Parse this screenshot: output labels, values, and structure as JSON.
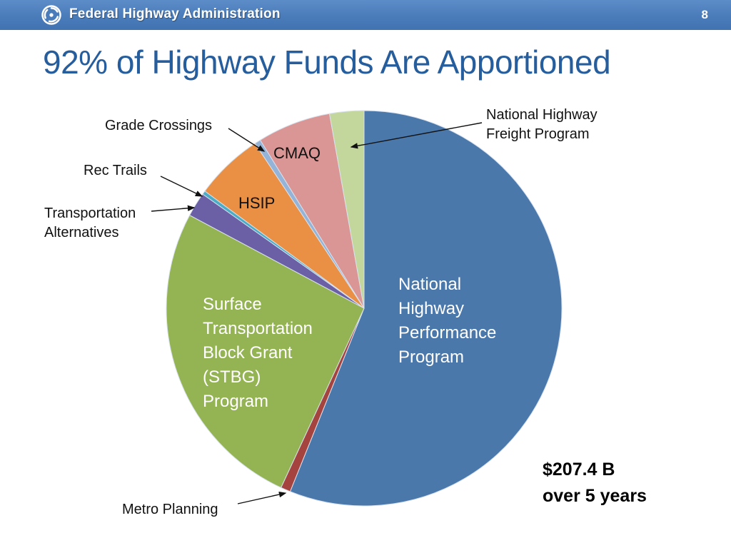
{
  "header": {
    "brand": "Federal Highway Administration",
    "page_number": "8",
    "logo_icon": "usdot-triskelion-logo",
    "bar_color": "#4a7cba"
  },
  "title": "92% of Highway Funds Are Apportioned",
  "annotation": {
    "total_line1": "$207.4 B",
    "total_line2": "over 5 years",
    "total_combined": "$207.4 B over 5 years"
  },
  "labels": {
    "nhpp_inside": "National\nHighway\nPerformance\nProgram",
    "stbg_inside": "Surface\nTransportation\nBlock Grant\n(STBG)\nProgram",
    "hsip": "HSIP",
    "cmaq": "CMAQ",
    "grade_crossings": "Grade Crossings",
    "rec_trails": "Rec Trails",
    "transportation_alternatives": "Transportation\nAlternatives",
    "freight": "National Highway\nFreight Program",
    "metro_planning": "Metro Planning"
  },
  "chart_data": {
    "type": "pie",
    "title": "92% of Highway Funds Are Apportioned",
    "annotation": "$207.4 B over 5 years",
    "rotation": "clockwise starting at 12 o'clock",
    "legend": "none (direct labels and leader-line callouts)",
    "slices": [
      {
        "label": "National Highway Performance Program",
        "share_pct": 56.1,
        "color": "#4a78ab"
      },
      {
        "label": "Metro Planning",
        "share_pct": 0.8,
        "color": "#a5443f"
      },
      {
        "label": "Surface Transportation Block Grant (STBG) Program",
        "share_pct": 25.9,
        "color": "#94b352"
      },
      {
        "label": "Transportation Alternatives",
        "share_pct": 2.0,
        "color": "#6b5fa5"
      },
      {
        "label": "Rec Trails",
        "share_pct": 0.3,
        "color": "#4bacc6"
      },
      {
        "label": "HSIP",
        "share_pct": 5.6,
        "color": "#ea9045"
      },
      {
        "label": "Grade Crossings",
        "share_pct": 0.5,
        "color": "#95b3d7"
      },
      {
        "label": "CMAQ",
        "share_pct": 6.0,
        "color": "#d99694"
      },
      {
        "label": "National Highway Freight Program",
        "share_pct": 2.8,
        "color": "#c3d69b"
      }
    ]
  }
}
